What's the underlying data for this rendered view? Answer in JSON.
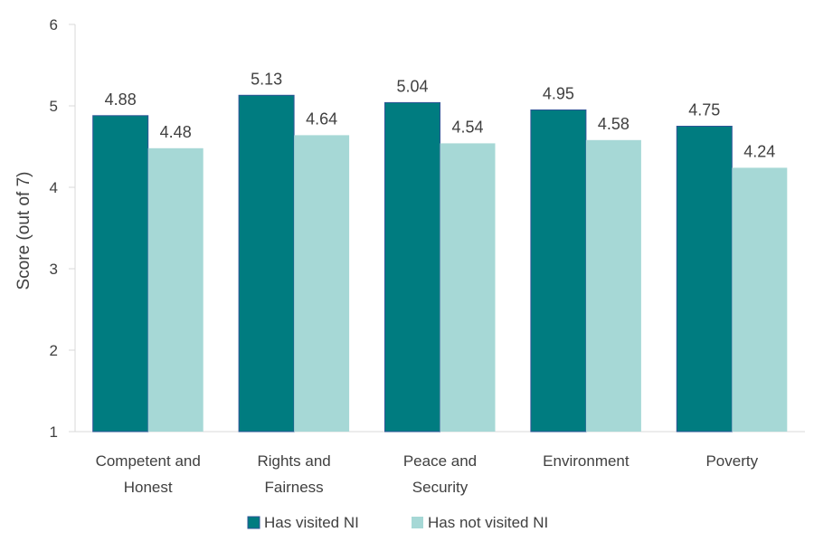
{
  "chart_data": {
    "type": "bar",
    "title": "",
    "xlabel": "",
    "ylabel": "Score (out of 7)",
    "ylim": [
      1,
      6
    ],
    "yticks": [
      "1",
      "2",
      "3",
      "4",
      "5",
      "6"
    ],
    "grid": false,
    "legend_position": "bottom",
    "categories": [
      [
        "Competent and",
        "Honest"
      ],
      [
        "Rights and",
        "Fairness"
      ],
      [
        "Peace and",
        "Security"
      ],
      [
        "Environment"
      ],
      [
        "Poverty"
      ]
    ],
    "series": [
      {
        "name": "Has visited NI",
        "color": "#007C80",
        "values": [
          4.88,
          5.13,
          5.04,
          4.95,
          4.75
        ],
        "labels": [
          "4.88",
          "5.13",
          "5.04",
          "4.95",
          "4.75"
        ]
      },
      {
        "name": "Has not visited NI",
        "color": "#A6D8D6",
        "values": [
          4.48,
          4.64,
          4.54,
          4.58,
          4.24
        ],
        "labels": [
          "4.48",
          "4.64",
          "4.54",
          "4.58",
          "4.24"
        ]
      }
    ]
  }
}
